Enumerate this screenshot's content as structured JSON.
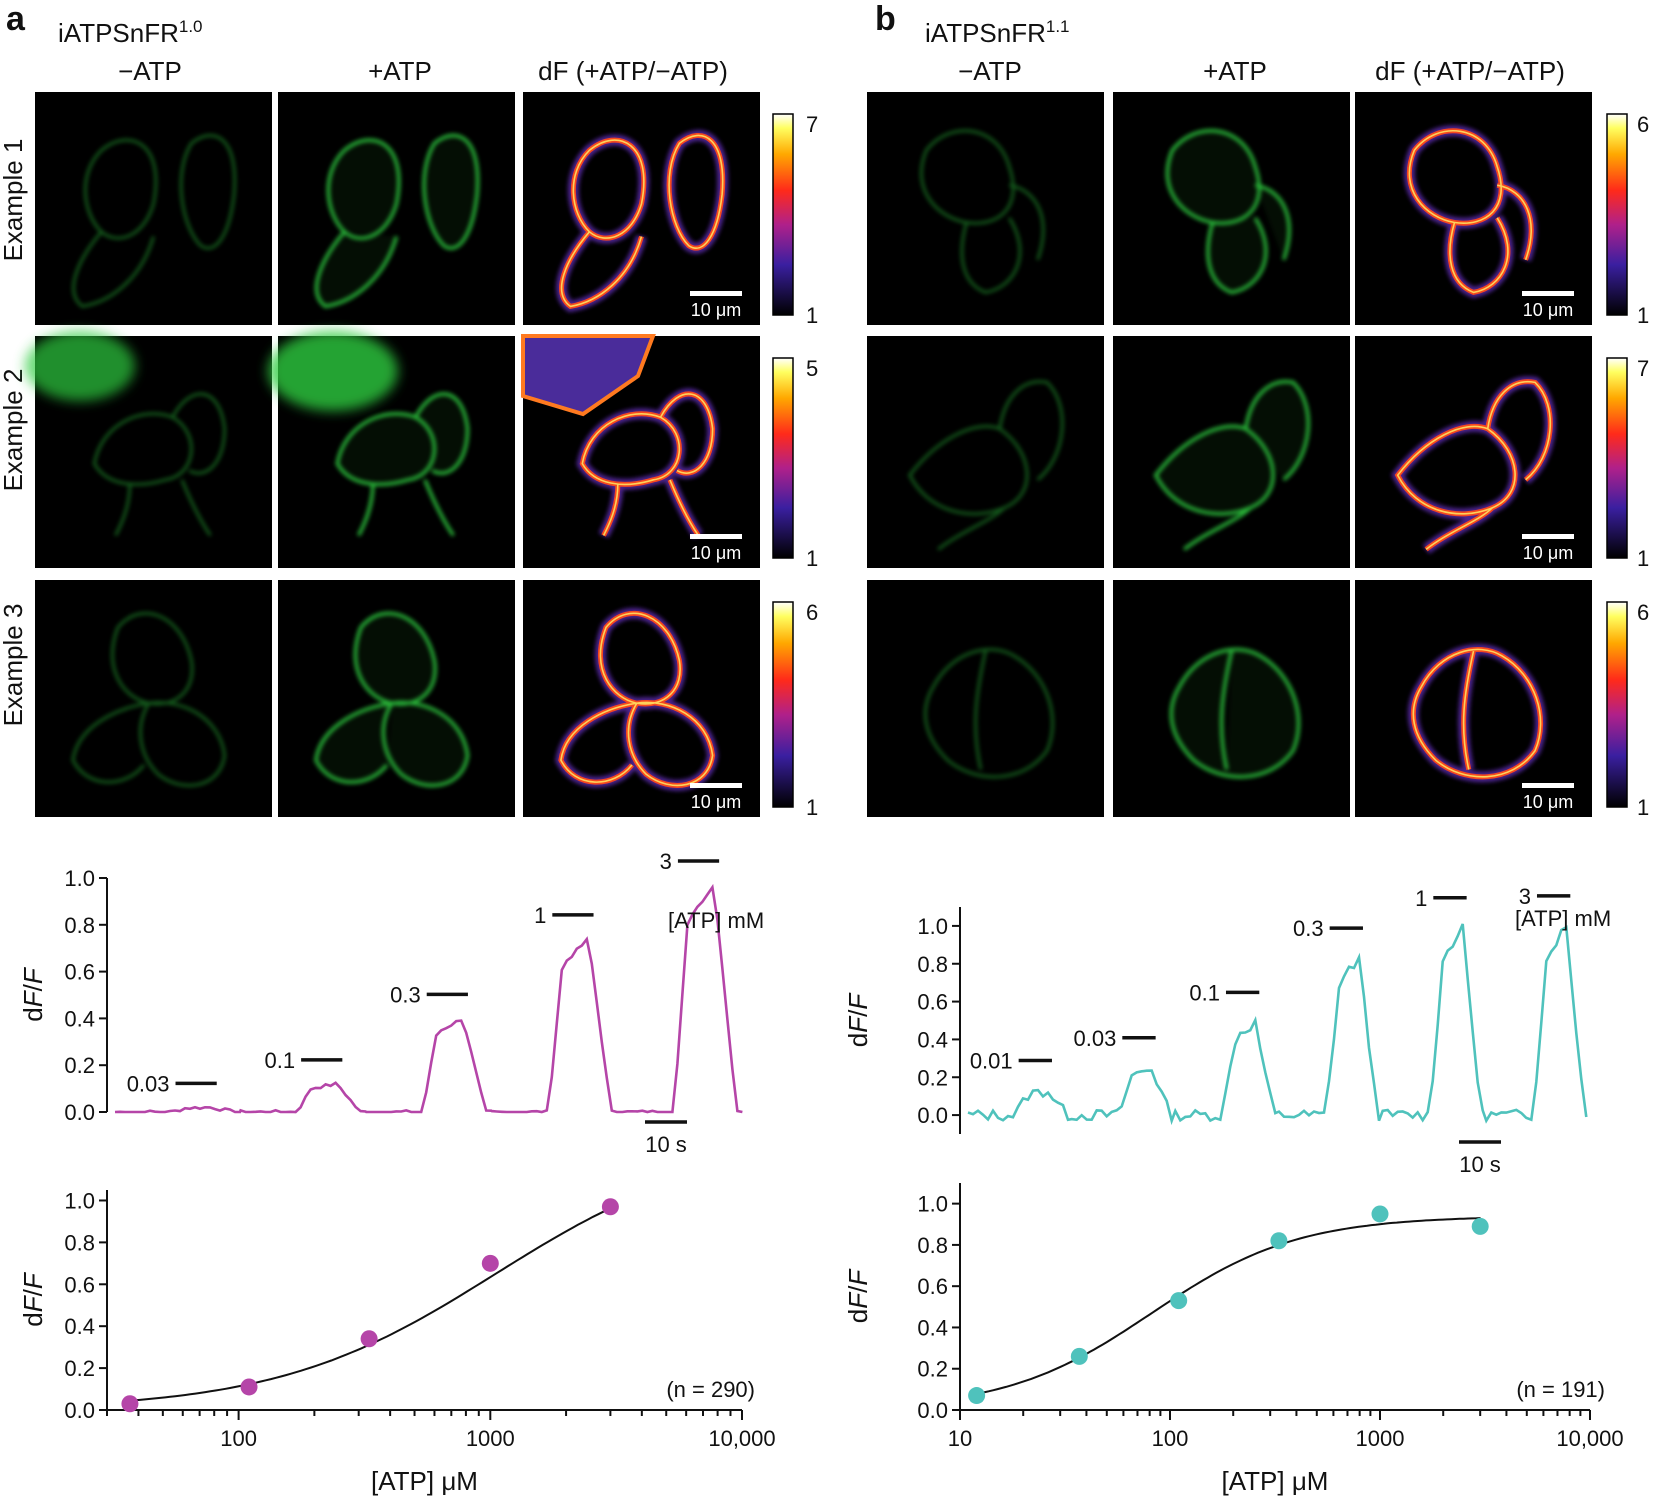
{
  "panels": [
    {
      "letter": "a",
      "sensor_base": "iATPSnFR",
      "sensor_sup": "1.0",
      "columns": [
        "−ATP",
        "+ATP",
        "dF (+ATP/−ATP)"
      ],
      "rows": [
        {
          "label": "Example 1",
          "cbar_max": "7",
          "cbar_min": "1",
          "scalebar": "10 μm"
        },
        {
          "label": "Example 2",
          "cbar_max": "5",
          "cbar_min": "1",
          "scalebar": "10 μm"
        },
        {
          "label": "Example 3",
          "cbar_max": "6",
          "cbar_min": "1",
          "scalebar": "10 μm"
        }
      ]
    },
    {
      "letter": "b",
      "sensor_base": "iATPSnFR",
      "sensor_sup": "1.1",
      "columns": [
        "−ATP",
        "+ATP",
        "dF (+ATP/−ATP)"
      ],
      "rows": [
        {
          "label": "",
          "cbar_max": "6",
          "cbar_min": "1",
          "scalebar": "10 μm"
        },
        {
          "label": "",
          "cbar_max": "7",
          "cbar_min": "1",
          "scalebar": "10 μm"
        },
        {
          "label": "",
          "cbar_max": "6",
          "cbar_min": "1",
          "scalebar": "10 μm"
        }
      ]
    }
  ],
  "colors": {
    "trace_a": "#b545a8",
    "trace_b": "#4fc2bc",
    "cell_green": "#2ecc40",
    "image_bg": "#000000"
  },
  "chart_data": [
    {
      "id": "trace-a",
      "type": "line",
      "ylabel": "dF/F",
      "ylim": [
        0,
        1.0
      ],
      "yticks": [
        "0.0",
        "0.2",
        "0.4",
        "0.6",
        "0.8",
        "1.0"
      ],
      "legend_text": "[ATP] mM",
      "time_scalebar": "10 s",
      "steps": [
        {
          "label": "0.03",
          "peak": 0.02
        },
        {
          "label": "0.1",
          "peak": 0.12
        },
        {
          "label": "0.3",
          "peak": 0.4
        },
        {
          "label": "1",
          "peak": 0.74
        },
        {
          "label": "3",
          "peak": 0.97
        }
      ]
    },
    {
      "id": "trace-b",
      "type": "line",
      "ylabel": "dF/F",
      "ylim": [
        -0.1,
        1.1
      ],
      "yticks": [
        "0.0",
        "0.2",
        "0.4",
        "0.6",
        "0.8",
        "1.0"
      ],
      "legend_text": "[ATP] mM",
      "time_scalebar": "10 s",
      "steps": [
        {
          "label": "0.01",
          "peak": 0.13
        },
        {
          "label": "0.03",
          "peak": 0.25
        },
        {
          "label": "0.1",
          "peak": 0.49
        },
        {
          "label": "0.3",
          "peak": 0.83
        },
        {
          "label": "1",
          "peak": 0.99
        },
        {
          "label": "3",
          "peak": 1.0
        }
      ]
    },
    {
      "id": "dose-a",
      "type": "scatter",
      "xscale": "log",
      "xlabel": "[ATP] μM",
      "ylabel": "dF/F",
      "xlim": [
        30,
        10000
      ],
      "ylim": [
        0,
        1.05
      ],
      "xticks": [
        "100",
        "1000",
        "10,000"
      ],
      "yticks": [
        "0.0",
        "0.2",
        "0.4",
        "0.6",
        "0.8",
        "1.0"
      ],
      "x": [
        37,
        110,
        330,
        1000,
        3000
      ],
      "y": [
        0.03,
        0.11,
        0.34,
        0.7,
        0.97
      ],
      "n_label": "(n = 290)",
      "fit": {
        "top": 1.3,
        "ec50": 1050,
        "hill": 1.0
      }
    },
    {
      "id": "dose-b",
      "type": "scatter",
      "xscale": "log",
      "xlabel": "[ATP] μM",
      "ylabel": "dF/F",
      "xlim": [
        10,
        10000
      ],
      "ylim": [
        0,
        1.1
      ],
      "xticks": [
        "10",
        "100",
        "1000",
        "10,000"
      ],
      "yticks": [
        "0.0",
        "0.2",
        "0.4",
        "0.6",
        "0.8",
        "1.0"
      ],
      "x": [
        12,
        37,
        110,
        330,
        1000,
        3000
      ],
      "y": [
        0.07,
        0.26,
        0.53,
        0.82,
        0.95,
        0.89
      ],
      "n_label": "(n = 191)",
      "fit": {
        "top": 0.94,
        "ec50": 82,
        "hill": 1.25
      }
    }
  ]
}
